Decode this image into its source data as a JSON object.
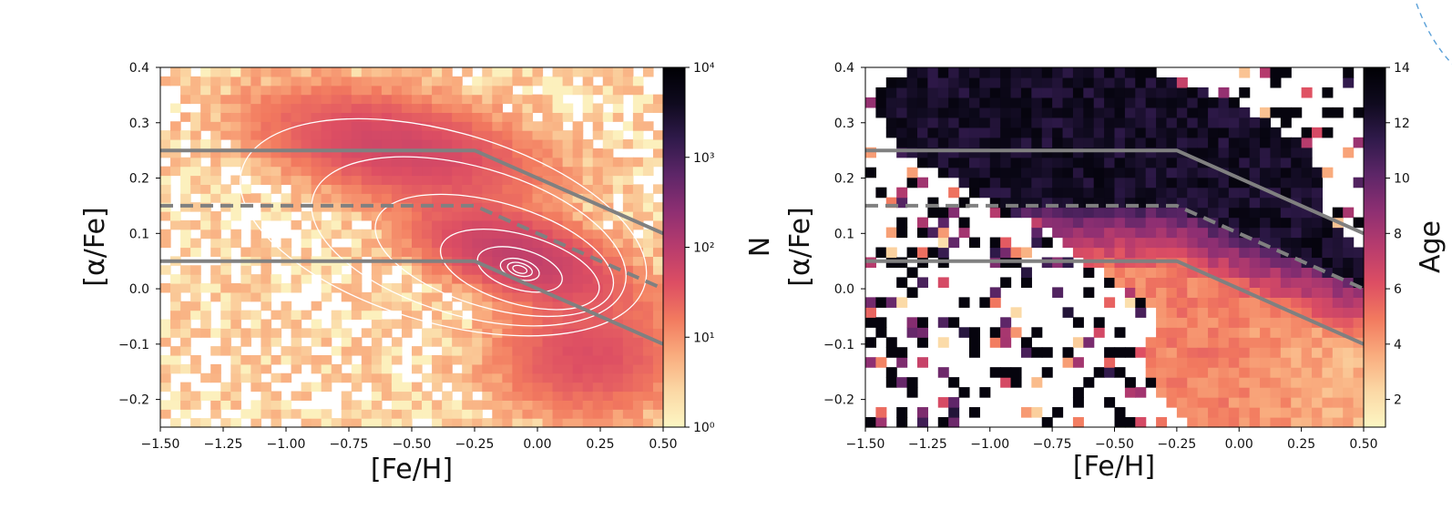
{
  "chart_data": [
    {
      "type": "heatmap",
      "panel": "left",
      "xlabel": "[Fe/H]",
      "ylabel": "[α/Fe]",
      "colorbar_label": "N",
      "colorbar_scale": "log",
      "colorbar_range": [
        1,
        10000
      ],
      "xlim": [
        -1.5,
        0.5
      ],
      "ylim": [
        -0.25,
        0.4
      ],
      "xticks": [
        -1.5,
        -1.25,
        -1.0,
        -0.75,
        -0.5,
        -0.25,
        0.0,
        0.25,
        0.5
      ],
      "xtick_labels": [
        "−1.50",
        "−1.25",
        "−1.00",
        "−0.75",
        "−0.50",
        "−0.25",
        "0.00",
        "0.25",
        "0.50"
      ],
      "yticks": [
        -0.2,
        -0.1,
        0.0,
        0.1,
        0.2,
        0.3,
        0.4
      ],
      "ytick_labels": [
        "−0.2",
        "−0.1",
        "0.0",
        "0.1",
        "0.2",
        "0.3",
        "0.4"
      ],
      "cbar_ticks": [
        "10⁰",
        "10¹",
        "10²",
        "10³",
        "10⁴"
      ],
      "density_peak": {
        "feh": -0.07,
        "afe": 0.035
      },
      "contour_levels": 8,
      "lines": [
        {
          "style": "solid",
          "points": [
            [
              -1.5,
              0.25
            ],
            [
              -0.25,
              0.25
            ],
            [
              0.5,
              0.1
            ]
          ]
        },
        {
          "style": "dashed",
          "points": [
            [
              -1.5,
              0.15
            ],
            [
              -0.25,
              0.15
            ],
            [
              0.5,
              0.0
            ]
          ]
        },
        {
          "style": "solid",
          "points": [
            [
              -1.5,
              0.05
            ],
            [
              -0.25,
              0.05
            ],
            [
              0.5,
              -0.1
            ]
          ]
        }
      ]
    },
    {
      "type": "heatmap",
      "panel": "right",
      "xlabel": "[Fe/H]",
      "ylabel": "[α/Fe]",
      "colorbar_label": "Age",
      "colorbar_scale": "linear",
      "colorbar_range": [
        1,
        14
      ],
      "xlim": [
        -1.5,
        0.5
      ],
      "ylim": [
        -0.25,
        0.4
      ],
      "xticks": [
        -1.5,
        -1.25,
        -1.0,
        -0.75,
        -0.5,
        -0.25,
        0.0,
        0.25,
        0.5
      ],
      "xtick_labels": [
        "−1.50",
        "−1.25",
        "−1.00",
        "−0.75",
        "−0.50",
        "−0.25",
        "0.00",
        "0.25",
        "0.50"
      ],
      "yticks": [
        -0.2,
        -0.1,
        0.0,
        0.1,
        0.2,
        0.3,
        0.4
      ],
      "ytick_labels": [
        "−0.2",
        "−0.1",
        "0.0",
        "0.1",
        "0.2",
        "0.3",
        "0.4"
      ],
      "cbar_ticks": [
        2,
        4,
        6,
        8,
        10,
        12,
        14
      ],
      "cbar_tick_labels": [
        "2",
        "4",
        "6",
        "8",
        "10",
        "12",
        "14"
      ],
      "lines": [
        {
          "style": "solid",
          "points": [
            [
              -1.5,
              0.25
            ],
            [
              -0.25,
              0.25
            ],
            [
              0.5,
              0.1
            ]
          ]
        },
        {
          "style": "dashed",
          "points": [
            [
              -1.5,
              0.15
            ],
            [
              -0.25,
              0.15
            ],
            [
              0.5,
              0.0
            ]
          ]
        },
        {
          "style": "solid",
          "points": [
            [
              -1.5,
              0.05
            ],
            [
              -0.25,
              0.05
            ],
            [
              0.5,
              -0.1
            ]
          ]
        }
      ]
    }
  ],
  "colors": {
    "line": "#808080",
    "contour": "#ffffff",
    "colormap": [
      "#fcf6c3",
      "#fbd8a5",
      "#f9ac7e",
      "#f27a5f",
      "#dd4e63",
      "#b83c6d",
      "#8e2f72",
      "#5e2668",
      "#301a4b",
      "#0f0a1e",
      "#000004"
    ],
    "decor_arc": "#5aa0d8"
  }
}
